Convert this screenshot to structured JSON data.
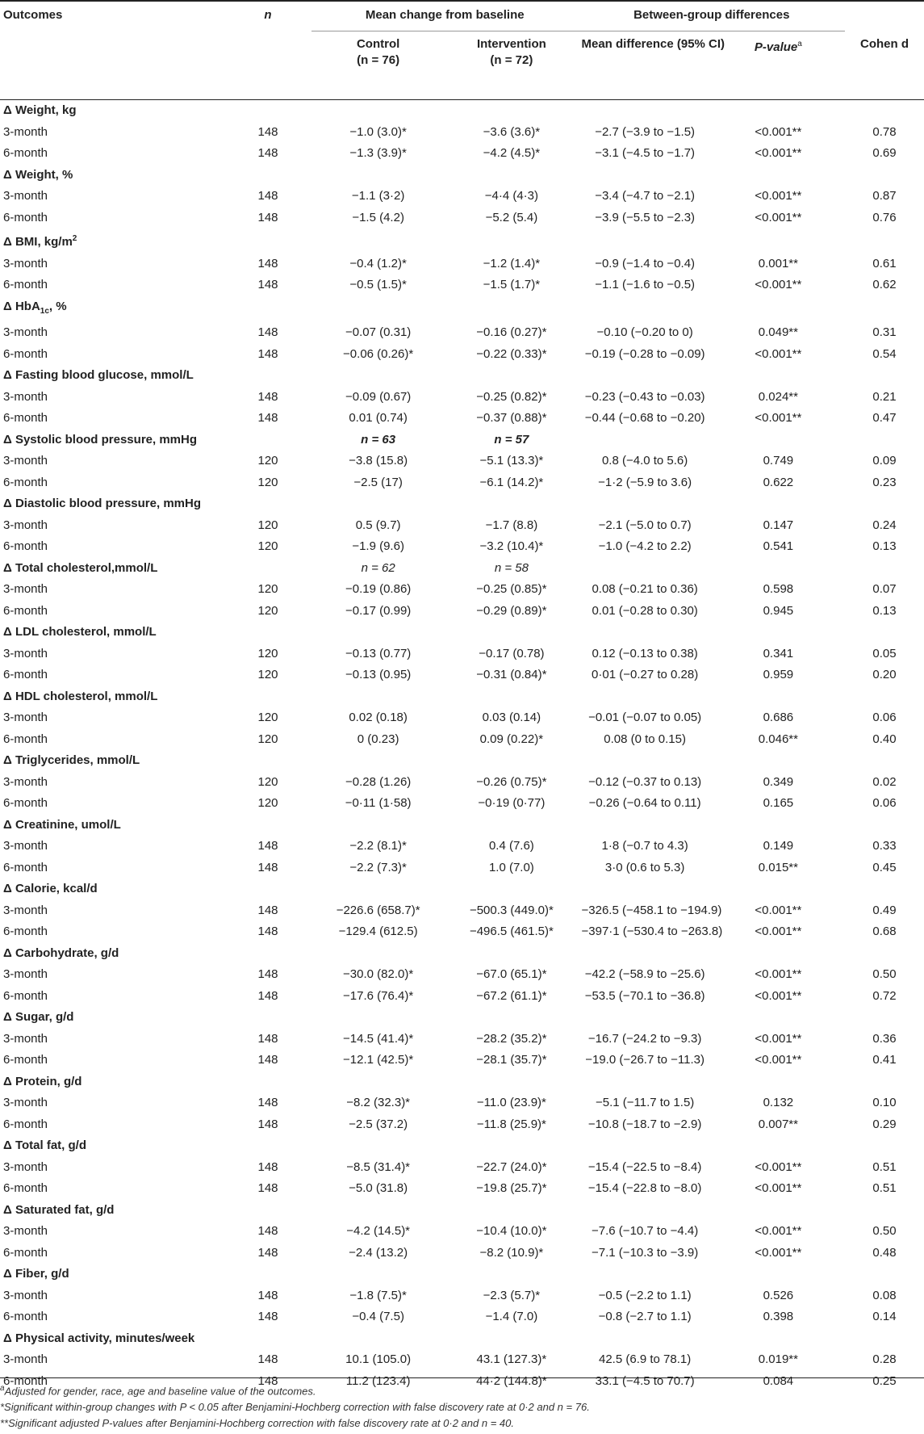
{
  "header": {
    "outcomes": "Outcomes",
    "n": "n",
    "mean_change": "Mean change from baseline",
    "between": "Between-group differences",
    "control": "Control",
    "control_n": "(n = 76)",
    "intervention": "Intervention",
    "intervention_n": "(n = 72)",
    "mean_diff": "Mean difference (95% CI)",
    "pvalue": "P-value",
    "pvalue_sup": "a",
    "cohen": "Cohen d"
  },
  "sections": [
    {
      "label": "Δ Weight, kg",
      "rows": [
        {
          "t": "3-month",
          "n": "148",
          "c": "−1.0 (3.0)*",
          "i": "−3.6 (3.6)*",
          "d": "−2.7 (−3.9 to −1.5)",
          "p": "<0.001**",
          "e": "0.78"
        },
        {
          "t": "6-month",
          "n": "148",
          "c": "−1.3 (3.9)*",
          "i": "−4.2 (4.5)*",
          "d": "−3.1 (−4.5 to −1.7)",
          "p": "<0.001**",
          "e": "0.69"
        }
      ]
    },
    {
      "label": "Δ Weight, %",
      "rows": [
        {
          "t": "3-month",
          "n": "148",
          "c": "−1.1 (3·2)",
          "i": "−4·4 (4·3)",
          "d": "−3.4 (−4.7 to −2.1)",
          "p": "<0.001**",
          "e": "0.87"
        },
        {
          "t": "6-month",
          "n": "148",
          "c": "−1.5 (4.2)",
          "i": "−5.2 (5.4)",
          "d": "−3.9 (−5.5 to −2.3)",
          "p": "<0.001**",
          "e": "0.76"
        }
      ]
    },
    {
      "label": "Δ BMI, kg/m",
      "sup": "2",
      "rows": [
        {
          "t": "3-month",
          "n": "148",
          "c": "−0.4 (1.2)*",
          "i": "−1.2 (1.4)*",
          "d": "−0.9 (−1.4 to −0.4)",
          "p": "0.001**",
          "e": "0.61"
        },
        {
          "t": "6-month",
          "n": "148",
          "c": "−0.5 (1.5)*",
          "i": "−1.5 (1.7)*",
          "d": "−1.1 (−1.6 to −0.5)",
          "p": "<0.001**",
          "e": "0.62"
        }
      ]
    },
    {
      "label": "Δ HbA",
      "sub": "1c",
      "label_tail": ", %",
      "rows": [
        {
          "t": "3-month",
          "n": "148",
          "c": "−0.07 (0.31)",
          "i": "−0.16 (0.27)*",
          "d": "−0.10 (−0.20 to 0)",
          "p": "0.049**",
          "e": "0.31"
        },
        {
          "t": "6-month",
          "n": "148",
          "c": "−0.06 (0.26)*",
          "i": "−0.22 (0.33)*",
          "d": "−0.19 (−0.28 to −0.09)",
          "p": "<0.001**",
          "e": "0.54"
        }
      ]
    },
    {
      "label": "Δ Fasting blood glucose, mmol/L",
      "rows": [
        {
          "t": "3-month",
          "n": "148",
          "c": "−0.09 (0.67)",
          "i": "−0.25 (0.82)*",
          "d": "−0.23 (−0.43 to −0.03)",
          "p": "0.024**",
          "e": "0.21"
        },
        {
          "t": "6-month",
          "n": "148",
          "c": "0.01 (0.74)",
          "i": "−0.37 (0.88)*",
          "d": "−0.44 (−0.68 to −0.20)",
          "p": "<0.001**",
          "e": "0.47"
        }
      ]
    },
    {
      "label": "Δ Systolic blood pressure, mmHg",
      "cn": "n = 63",
      "in": "n = 57",
      "bold_n": true,
      "rows": [
        {
          "t": "3-month",
          "n": "120",
          "c": "−3.8 (15.8)",
          "i": "−5.1 (13.3)*",
          "d": "0.8 (−4.0 to 5.6)",
          "p": "0.749",
          "e": "0.09"
        },
        {
          "t": "6-month",
          "n": "120",
          "c": "−2.5 (17)",
          "i": "−6.1 (14.2)*",
          "d": "−1·2 (−5.9 to 3.6)",
          "p": "0.622",
          "e": "0.23"
        }
      ]
    },
    {
      "label": "Δ Diastolic blood pressure, mmHg",
      "rows": [
        {
          "t": "3-month",
          "n": "120",
          "c": "0.5 (9.7)",
          "i": "−1.7 (8.8)",
          "d": "−2.1 (−5.0 to 0.7)",
          "p": "0.147",
          "e": "0.24"
        },
        {
          "t": "6-month",
          "n": "120",
          "c": "−1.9 (9.6)",
          "i": "−3.2 (10.4)*",
          "d": "−1.0 (−4.2 to 2.2)",
          "p": "0.541",
          "e": "0.13"
        }
      ]
    },
    {
      "label": "Δ Total cholesterol,mmol/L",
      "cn": "n = 62",
      "in": "n = 58",
      "rows": [
        {
          "t": "3-month",
          "n": "120",
          "c": "−0.19 (0.86)",
          "i": "−0.25 (0.85)*",
          "d": "0.08 (−0.21 to 0.36)",
          "p": "0.598",
          "e": "0.07"
        },
        {
          "t": "6-month",
          "n": "120",
          "c": "−0.17 (0.99)",
          "i": "−0.29 (0.89)*",
          "d": "0.01 (−0.28 to 0.30)",
          "p": "0.945",
          "e": "0.13"
        }
      ]
    },
    {
      "label": "Δ LDL cholesterol, mmol/L",
      "rows": [
        {
          "t": "3-month",
          "n": "120",
          "c": "−0.13 (0.77)",
          "i": "−0.17 (0.78)",
          "d": "0.12 (−0.13 to 0.38)",
          "p": "0.341",
          "e": "0.05"
        },
        {
          "t": "6-month",
          "n": "120",
          "c": "−0.13 (0.95)",
          "i": "−0.31 (0.84)*",
          "d": "0·01 (−0.27 to 0.28)",
          "p": "0.959",
          "e": "0.20"
        }
      ]
    },
    {
      "label": "Δ HDL cholesterol, mmol/L",
      "rows": [
        {
          "t": "3-month",
          "n": "120",
          "c": "0.02 (0.18)",
          "i": "0.03 (0.14)",
          "d": "−0.01 (−0.07 to 0.05)",
          "p": "0.686",
          "e": "0.06"
        },
        {
          "t": "6-month",
          "n": "120",
          "c": "0 (0.23)",
          "i": "0.09 (0.22)*",
          "d": "0.08 (0 to 0.15)",
          "p": "0.046**",
          "e": "0.40"
        }
      ]
    },
    {
      "label": "Δ Triglycerides, mmol/L",
      "rows": [
        {
          "t": "3-month",
          "n": "120",
          "c": "−0.28 (1.26)",
          "i": "−0.26 (0.75)*",
          "d": "−0.12 (−0.37 to 0.13)",
          "p": "0.349",
          "e": "0.02"
        },
        {
          "t": "6-month",
          "n": "120",
          "c": "−0·11 (1·58)",
          "i": "−0·19 (0·77)",
          "d": "−0.26 (−0.64 to 0.11)",
          "p": "0.165",
          "e": "0.06"
        }
      ]
    },
    {
      "label": "Δ Creatinine, umol/L",
      "rows": [
        {
          "t": "3-month",
          "n": "148",
          "c": "−2.2 (8.1)*",
          "i": "0.4 (7.6)",
          "d": "1·8 (−0.7 to 4.3)",
          "p": "0.149",
          "e": "0.33"
        },
        {
          "t": "6-month",
          "n": "148",
          "c": "−2.2 (7.3)*",
          "i": "1.0 (7.0)",
          "d": "3·0 (0.6 to 5.3)",
          "p": "0.015**",
          "e": "0.45"
        }
      ]
    },
    {
      "label": "Δ Calorie, kcal/d",
      "rows": [
        {
          "t": "3-month",
          "n": "148",
          "c": "−226.6 (658.7)*",
          "i": "−500.3 (449.0)*",
          "d": "−326.5 (−458.1 to −194.9)",
          "p": "<0.001**",
          "e": "0.49"
        },
        {
          "t": "6-month",
          "n": "148",
          "c": "−129.4 (612.5)",
          "i": "−496.5 (461.5)*",
          "d": "−397·1 (−530.4 to −263.8)",
          "p": "<0.001**",
          "e": "0.68"
        }
      ]
    },
    {
      "label": "Δ Carbohydrate, g/d",
      "rows": [
        {
          "t": "3-month",
          "n": "148",
          "c": "−30.0 (82.0)*",
          "i": "−67.0 (65.1)*",
          "d": "−42.2 (−58.9 to −25.6)",
          "p": "<0.001**",
          "e": "0.50"
        },
        {
          "t": "6-month",
          "n": "148",
          "c": "−17.6 (76.4)*",
          "i": "−67.2 (61.1)*",
          "d": "−53.5 (−70.1 to −36.8)",
          "p": "<0.001**",
          "e": "0.72"
        }
      ]
    },
    {
      "label": "Δ Sugar, g/d",
      "rows": [
        {
          "t": "3-month",
          "n": "148",
          "c": "−14.5 (41.4)*",
          "i": "−28.2 (35.2)*",
          "d": "−16.7 (−24.2 to −9.3)",
          "p": "<0.001**",
          "e": "0.36"
        },
        {
          "t": "6-month",
          "n": "148",
          "c": "−12.1 (42.5)*",
          "i": "−28.1 (35.7)*",
          "d": "−19.0 (−26.7 to −11.3)",
          "p": "<0.001**",
          "e": "0.41"
        }
      ]
    },
    {
      "label": "Δ Protein, g/d",
      "rows": [
        {
          "t": "3-month",
          "n": "148",
          "c": "−8.2 (32.3)*",
          "i": "−11.0 (23.9)*",
          "d": "−5.1 (−11.7 to 1.5)",
          "p": "0.132",
          "e": "0.10"
        },
        {
          "t": "6-month",
          "n": "148",
          "c": "−2.5 (37.2)",
          "i": "−11.8 (25.9)*",
          "d": "−10.8 (−18.7 to −2.9)",
          "p": "0.007**",
          "e": "0.29"
        }
      ]
    },
    {
      "label": "Δ Total fat, g/d",
      "rows": [
        {
          "t": "3-month",
          "n": "148",
          "c": "−8.5 (31.4)*",
          "i": "−22.7 (24.0)*",
          "d": "−15.4 (−22.5 to −8.4)",
          "p": "<0.001**",
          "e": "0.51"
        },
        {
          "t": "6-month",
          "n": "148",
          "c": "−5.0 (31.8)",
          "i": "−19.8 (25.7)*",
          "d": "−15.4 (−22.8 to −8.0)",
          "p": "<0.001**",
          "e": "0.51"
        }
      ]
    },
    {
      "label": "Δ Saturated fat, g/d",
      "rows": [
        {
          "t": "3-month",
          "n": "148",
          "c": "−4.2 (14.5)*",
          "i": "−10.4 (10.0)*",
          "d": "−7.6 (−10.7 to −4.4)",
          "p": "<0.001**",
          "e": "0.50"
        },
        {
          "t": "6-month",
          "n": "148",
          "c": "−2.4 (13.2)",
          "i": "−8.2 (10.9)*",
          "d": "−7.1 (−10.3 to −3.9)",
          "p": "<0.001**",
          "e": "0.48"
        }
      ]
    },
    {
      "label": "Δ Fiber, g/d",
      "rows": [
        {
          "t": "3-month",
          "n": "148",
          "c": "−1.8 (7.5)*",
          "i": "−2.3 (5.7)*",
          "d": "−0.5 (−2.2 to 1.1)",
          "p": "0.526",
          "e": "0.08"
        },
        {
          "t": "6-month",
          "n": "148",
          "c": "−0.4 (7.5)",
          "i": "−1.4 (7.0)",
          "d": "−0.8 (−2.7 to 1.1)",
          "p": "0.398",
          "e": "0.14"
        }
      ]
    },
    {
      "label": "Δ Physical activity, minutes/week",
      "rows": [
        {
          "t": "3-month",
          "n": "148",
          "c": "10.1 (105.0)",
          "i": "43.1 (127.3)*",
          "d": "42.5 (6.9 to 78.1)",
          "p": "0.019**",
          "e": "0.28"
        },
        {
          "t": "6-month",
          "n": "148",
          "c": "11.2 (123.4)",
          "i": "44·2 (144.8)*",
          "d": "33.1 (−4.5 to 70.7)",
          "p": "0.084",
          "e": "0.25"
        }
      ]
    }
  ],
  "footnotes": [
    {
      "mark": "a",
      "text": "Adjusted for gender, race, age and baseline value of the outcomes."
    },
    {
      "mark": "",
      "text": "*Significant within-group changes with P < 0.05 after Benjamini-Hochberg correction with false discovery rate at 0·2 and n = 76."
    },
    {
      "mark": "",
      "text": "**Significant adjusted P-values after Benjamini-Hochberg correction with false discovery rate at 0·2 and n = 40."
    }
  ]
}
